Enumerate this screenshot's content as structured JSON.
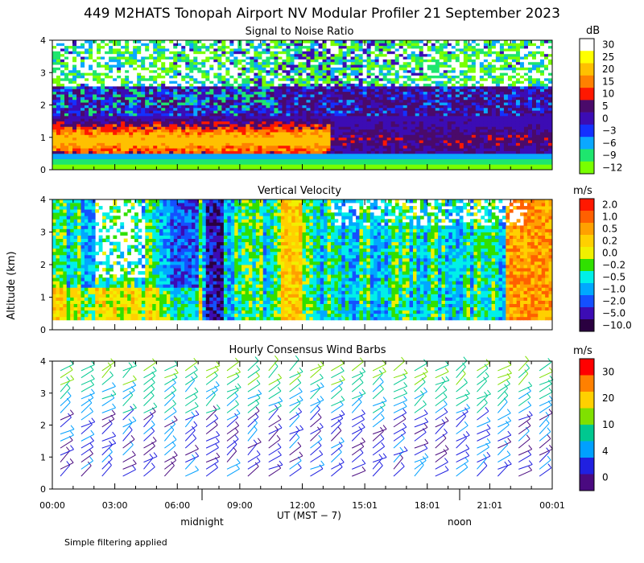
{
  "title": "449 M2HATS Tonopah Airport NV Modular Profiler 21 September 2023",
  "ylabel": "Altitude (km)",
  "xlabel": "UT  (MST − 7)",
  "x_ticks": [
    "00:00",
    "03:00",
    "06:00",
    "09:00",
    "12:00",
    "15:01",
    "18:01",
    "21:01",
    "00:01"
  ],
  "local_markers": {
    "midnight": "midnight",
    "noon": "noon"
  },
  "footnote": "Simple filtering applied",
  "chart_data": [
    {
      "type": "heatmap",
      "title": "Signal to Noise Ratio",
      "x_range": [
        "00:00",
        "00:01"
      ],
      "ylim": [
        0,
        4
      ],
      "y_ticks": [
        "0",
        "1",
        "2",
        "3",
        "4"
      ],
      "unit": "dB",
      "colorbar": [
        "30",
        "25",
        "20",
        "15",
        "10",
        "5",
        "0",
        "−3",
        "−6",
        "−9",
        "−12"
      ],
      "colors": [
        "#ffffff",
        "#ffff00",
        "#ffc000",
        "#ff8000",
        "#ff1800",
        "#4a0a6a",
        "#3c0cb4",
        "#1430ff",
        "#0aa8ff",
        "#1ee66e",
        "#78ff00"
      ]
    },
    {
      "type": "heatmap",
      "title": "Vertical Velocity",
      "x_range": [
        "00:00",
        "00:01"
      ],
      "ylim": [
        0,
        4
      ],
      "y_ticks": [
        "0",
        "1",
        "2",
        "3",
        "4"
      ],
      "unit": "m/s",
      "colorbar": [
        "2.0",
        "1.0",
        "0.5",
        "0.2",
        "0.0",
        "−0.2",
        "−0.5",
        "−1.0",
        "−2.0",
        "−5.0",
        "−10.0"
      ],
      "colors": [
        "#ff1800",
        "#ff6000",
        "#ffa000",
        "#ffd000",
        "#f0f000",
        "#30e000",
        "#00f0e8",
        "#00a8ff",
        "#1450ff",
        "#3c0cb4",
        "#2a0040"
      ]
    },
    {
      "type": "wind-barbs",
      "title": "Hourly Consensus Wind Barbs",
      "x_range": [
        "00:00",
        "00:01"
      ],
      "ylim": [
        0,
        4
      ],
      "y_ticks": [
        "0",
        "1",
        "2",
        "3",
        "4"
      ],
      "unit": "m/s",
      "colorbar": [
        "30",
        "20",
        "10",
        "4",
        "0"
      ],
      "colors": [
        "#ff0000",
        "#ff8000",
        "#ffd000",
        "#80e000",
        "#00c890",
        "#00a0ff",
        "#2020e0",
        "#4a0a80"
      ]
    }
  ]
}
